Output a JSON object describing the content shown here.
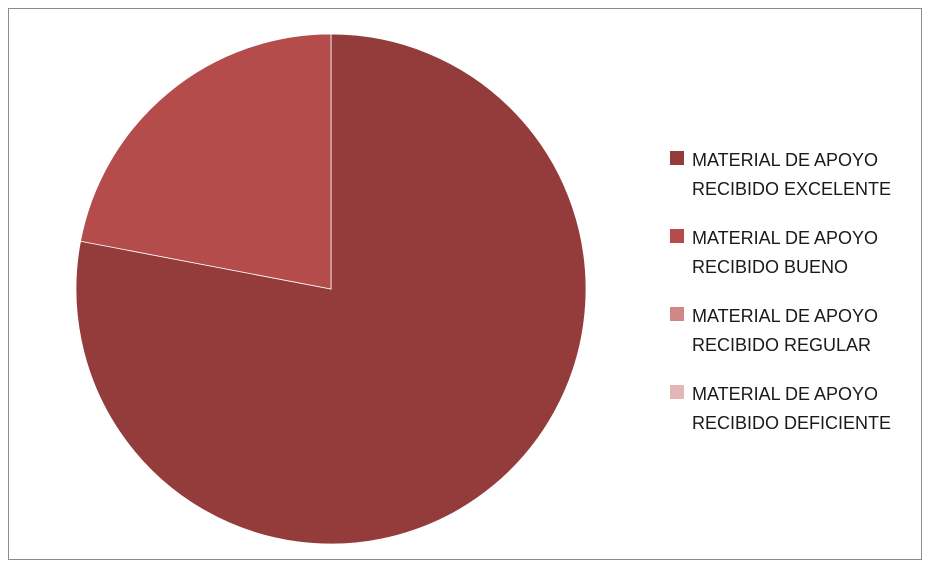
{
  "chart_data": {
    "type": "pie",
    "title": "",
    "slices": [
      {
        "label": "MATERIAL DE APOYO\nRECIBIDO EXCELENTE",
        "value": 78,
        "color": "#943c3b"
      },
      {
        "label": "MATERIAL DE APOYO\nRECIBIDO BUENO",
        "value": 22,
        "color": "#b44c4b"
      },
      {
        "label": "MATERIAL DE APOYO\nRECIBIDO REGULAR",
        "value": 0,
        "color": "#d08886"
      },
      {
        "label": "MATERIAL DE APOYO\nRECIBIDO DEFICIENTE",
        "value": 0,
        "color": "#e3b7b6"
      }
    ],
    "start_angle_deg": 0,
    "direction": "clockwise",
    "legend_position": "right"
  }
}
